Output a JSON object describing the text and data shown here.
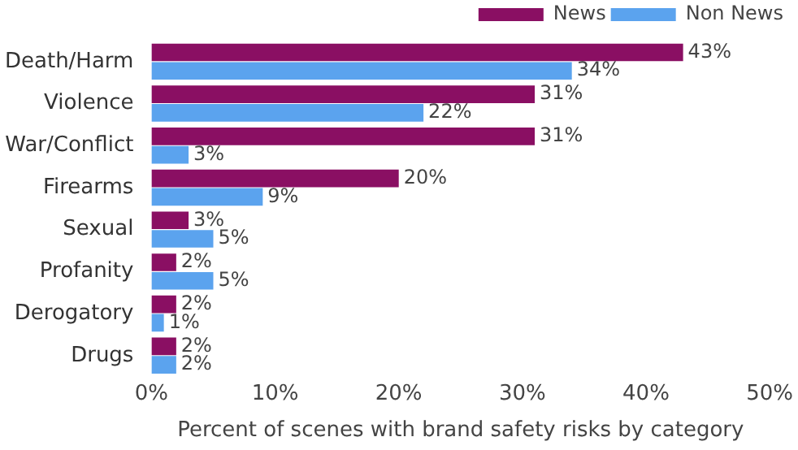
{
  "chart_data": {
    "type": "bar",
    "orientation": "horizontal",
    "xlabel": "Percent of scenes with brand safety risks by category",
    "categories": [
      "Death/Harm",
      "Violence",
      "War/Conflict",
      "Firearms",
      "Sexual",
      "Profanity",
      "Derogatory",
      "Drugs"
    ],
    "series": [
      {
        "name": "News",
        "color": "#8a0f63",
        "values": [
          43,
          31,
          31,
          20,
          3,
          2,
          2,
          2
        ],
        "value_labels": [
          "43%",
          "31%",
          "31%",
          "20%",
          "3%",
          "2%",
          "2%",
          "2%"
        ]
      },
      {
        "name": "Non News",
        "color": "#5ba3ee",
        "values": [
          34,
          22,
          3,
          9,
          5,
          5,
          1,
          2
        ],
        "value_labels": [
          "34%",
          "22%",
          "3%",
          "9%",
          "5%",
          "5%",
          "1%",
          "2%"
        ]
      }
    ],
    "xlim": [
      0,
      50
    ],
    "xticks": [
      {
        "value": 0,
        "label": "0%"
      },
      {
        "value": 10,
        "label": "10%"
      },
      {
        "value": 20,
        "label": "20%"
      },
      {
        "value": 30,
        "label": "30%"
      },
      {
        "value": 40,
        "label": "40%"
      },
      {
        "value": 50,
        "label": "50%"
      }
    ],
    "legend": "top right"
  }
}
